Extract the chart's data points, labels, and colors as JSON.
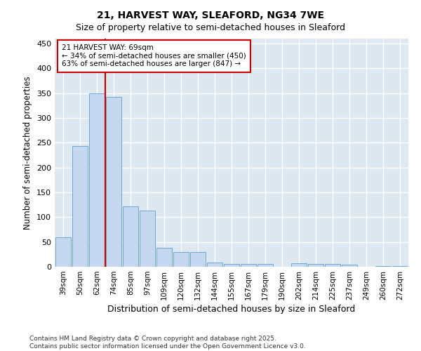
{
  "title1": "21, HARVEST WAY, SLEAFORD, NG34 7WE",
  "title2": "Size of property relative to semi-detached houses in Sleaford",
  "xlabel": "Distribution of semi-detached houses by size in Sleaford",
  "ylabel": "Number of semi-detached properties",
  "categories": [
    "39sqm",
    "50sqm",
    "62sqm",
    "74sqm",
    "85sqm",
    "97sqm",
    "109sqm",
    "120sqm",
    "132sqm",
    "144sqm",
    "155sqm",
    "167sqm",
    "179sqm",
    "190sqm",
    "202sqm",
    "214sqm",
    "225sqm",
    "237sqm",
    "249sqm",
    "260sqm",
    "272sqm"
  ],
  "values": [
    60,
    243,
    350,
    343,
    122,
    113,
    38,
    30,
    30,
    8,
    6,
    6,
    6,
    0,
    7,
    6,
    5,
    4,
    0,
    1,
    2
  ],
  "bar_color": "#c5d8ef",
  "bar_edge_color": "#6fa8d0",
  "vline_color": "#cc0000",
  "vline_pos": 2.5,
  "annotation_text_line1": "21 HARVEST WAY: 69sqm",
  "annotation_text_line2": "← 34% of semi-detached houses are smaller (450)",
  "annotation_text_line3": "63% of semi-detached houses are larger (847) →",
  "annotation_box_facecolor": "#ffffff",
  "annotation_box_edgecolor": "#cc0000",
  "ylim": [
    0,
    460
  ],
  "yticks": [
    0,
    50,
    100,
    150,
    200,
    250,
    300,
    350,
    400,
    450
  ],
  "fig_bg_color": "#ffffff",
  "plot_bg_color": "#dde8f0",
  "grid_color": "#ffffff",
  "footer": "Contains HM Land Registry data © Crown copyright and database right 2025.\nContains public sector information licensed under the Open Government Licence v3.0."
}
